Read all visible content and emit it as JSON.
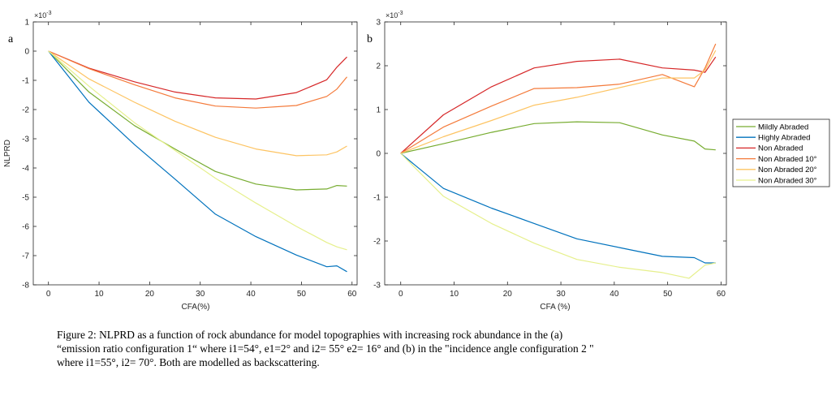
{
  "chart_data": [
    {
      "type": "line",
      "panel_label": "a",
      "xlabel": "CFA(%)",
      "ylabel": "NLPRD",
      "y_exponent": "×10",
      "y_exponent_power": "-3",
      "xlim": [
        -3,
        61
      ],
      "ylim": [
        -8,
        1
      ],
      "xticks": [
        0,
        10,
        20,
        30,
        40,
        50,
        60
      ],
      "yticks": [
        -8,
        -7,
        -6,
        -5,
        -4,
        -3,
        -2,
        -1,
        0,
        1
      ],
      "grid": false,
      "series": [
        {
          "name": "Mildly Abraded",
          "color": "#77ac30",
          "x": [
            0,
            8,
            17,
            25,
            33,
            41,
            49,
            55,
            57,
            59
          ],
          "y": [
            0,
            -1.4,
            -2.55,
            -3.35,
            -4.12,
            -4.55,
            -4.75,
            -4.72,
            -4.6,
            -4.62
          ]
        },
        {
          "name": "Highly Abraded",
          "color": "#0072bd",
          "x": [
            0,
            8,
            17,
            25,
            33,
            41,
            49,
            55,
            57,
            59
          ],
          "y": [
            0,
            -1.75,
            -3.2,
            -4.38,
            -5.58,
            -6.35,
            -6.98,
            -7.38,
            -7.35,
            -7.55
          ]
        },
        {
          "name": "Non Abraded",
          "color": "#d62728",
          "x": [
            0,
            8,
            17,
            25,
            33,
            41,
            49,
            55,
            57,
            59
          ],
          "y": [
            0,
            -0.58,
            -1.05,
            -1.4,
            -1.6,
            -1.64,
            -1.42,
            -0.98,
            -0.55,
            -0.2
          ]
        },
        {
          "name": "Non Abraded 10°",
          "color": "#f47a3a",
          "x": [
            0,
            8,
            17,
            25,
            33,
            41,
            49,
            55,
            57,
            59
          ],
          "y": [
            0,
            -0.6,
            -1.15,
            -1.6,
            -1.88,
            -1.95,
            -1.86,
            -1.55,
            -1.3,
            -0.88
          ]
        },
        {
          "name": "Non Abraded 20°",
          "color": "#fdc463",
          "x": [
            0,
            8,
            17,
            25,
            33,
            41,
            49,
            55,
            57,
            59
          ],
          "y": [
            0,
            -0.95,
            -1.75,
            -2.4,
            -2.95,
            -3.35,
            -3.58,
            -3.55,
            -3.45,
            -3.25
          ]
        },
        {
          "name": "Non Abraded 30°",
          "color": "#e6f08c",
          "x": [
            0,
            8,
            17,
            25,
            33,
            41,
            49,
            55,
            57,
            59
          ],
          "y": [
            0,
            -1.2,
            -2.45,
            -3.4,
            -4.35,
            -5.2,
            -6.0,
            -6.55,
            -6.7,
            -6.8
          ]
        }
      ]
    },
    {
      "type": "line",
      "panel_label": "b",
      "xlabel": "CFA (%)",
      "ylabel": "",
      "y_exponent": "×10",
      "y_exponent_power": "-3",
      "xlim": [
        -3,
        61
      ],
      "ylim": [
        -3,
        3
      ],
      "xticks": [
        0,
        10,
        20,
        30,
        40,
        50,
        60
      ],
      "yticks": [
        -3,
        -2,
        -1,
        0,
        1,
        2,
        3
      ],
      "grid": false,
      "legend_position": "outside-right",
      "series": [
        {
          "name": "Mildly Abraded",
          "color": "#77ac30",
          "x": [
            0,
            8,
            17,
            25,
            33,
            41,
            49,
            55,
            57,
            59
          ],
          "y": [
            0,
            0.22,
            0.48,
            0.68,
            0.72,
            0.7,
            0.42,
            0.28,
            0.1,
            0.08
          ]
        },
        {
          "name": "Highly Abraded",
          "color": "#0072bd",
          "x": [
            0,
            8,
            17,
            25,
            33,
            41,
            49,
            55,
            57,
            59
          ],
          "y": [
            0,
            -0.8,
            -1.25,
            -1.6,
            -1.95,
            -2.15,
            -2.35,
            -2.38,
            -2.5,
            -2.5
          ]
        },
        {
          "name": "Non Abraded",
          "color": "#d62728",
          "x": [
            0,
            8,
            17,
            25,
            33,
            41,
            49,
            55,
            57,
            59
          ],
          "y": [
            0,
            0.88,
            1.52,
            1.95,
            2.1,
            2.15,
            1.95,
            1.9,
            1.85,
            2.2
          ]
        },
        {
          "name": "Non Abraded 10°",
          "color": "#f47a3a",
          "x": [
            0,
            8,
            17,
            25,
            33,
            41,
            49,
            55,
            57,
            59
          ],
          "y": [
            0,
            0.6,
            1.08,
            1.48,
            1.5,
            1.58,
            1.8,
            1.52,
            1.95,
            2.5
          ]
        },
        {
          "name": "Non Abraded 20°",
          "color": "#fdc463",
          "x": [
            0,
            8,
            17,
            25,
            33,
            41,
            49,
            55,
            57,
            59
          ],
          "y": [
            0,
            0.38,
            0.75,
            1.1,
            1.28,
            1.5,
            1.72,
            1.72,
            1.9,
            2.35
          ]
        },
        {
          "name": "Non Abraded 30°",
          "color": "#e6f08c",
          "x": [
            0,
            8,
            17,
            25,
            33,
            41,
            49,
            54,
            57,
            59
          ],
          "y": [
            0,
            -0.98,
            -1.6,
            -2.05,
            -2.42,
            -2.6,
            -2.72,
            -2.85,
            -2.55,
            -2.5
          ]
        }
      ]
    }
  ],
  "caption": {
    "line1": "Figure 2: NLPRD as a function of rock abundance for model topographies with increasing rock abundance in the (a)",
    "line2": "“emission ratio configuration 1“ where  i1=54°, e1=2° and i2= 55° e2= 16° and (b) in the \"incidence angle configuration 2 \"",
    "line3": "where i1=55°, i2= 70°. Both are modelled  as backscattering."
  }
}
